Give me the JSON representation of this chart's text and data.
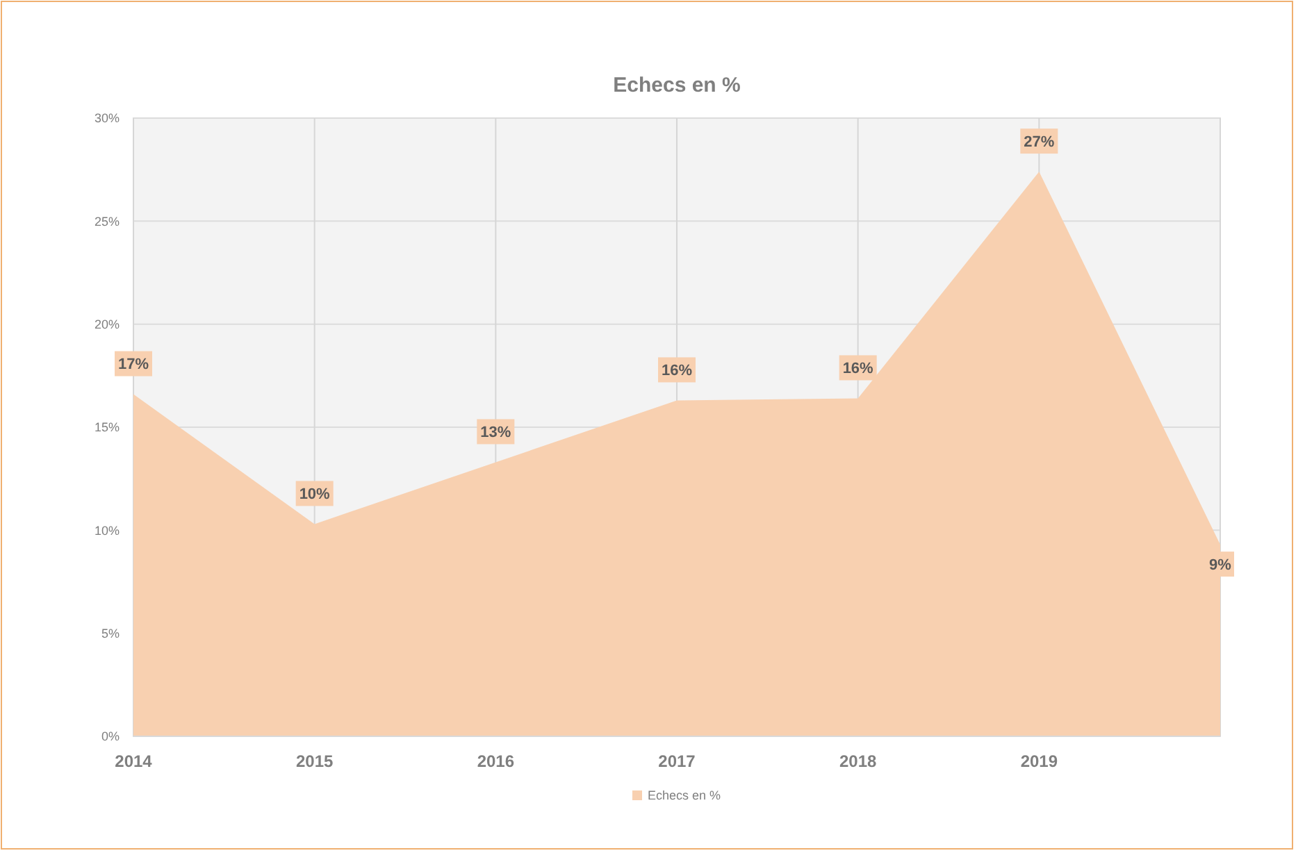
{
  "chart_data": {
    "type": "area",
    "title": "Echecs en %",
    "categories": [
      "2014",
      "2015",
      "2016",
      "2017",
      "2018",
      "2019",
      null
    ],
    "series": [
      {
        "name": "Echecs en %",
        "color": "#f8d0b0",
        "values": [
          16.6,
          10.3,
          13.3,
          16.3,
          16.4,
          27.4,
          9.3
        ],
        "value_labels": [
          "17%",
          "10%",
          "13%",
          "16%",
          "16%",
          "27%",
          "9%"
        ]
      }
    ],
    "ylim": [
      0,
      30
    ],
    "yticks": [
      {
        "value": 0,
        "label": "0%"
      },
      {
        "value": 5,
        "label": "5%"
      },
      {
        "value": 10,
        "label": "10%"
      },
      {
        "value": 15,
        "label": "15%"
      },
      {
        "value": 20,
        "label": "20%"
      },
      {
        "value": 25,
        "label": "25%"
      },
      {
        "value": 30,
        "label": "30%"
      }
    ],
    "grid": true,
    "legend": "bottom"
  }
}
